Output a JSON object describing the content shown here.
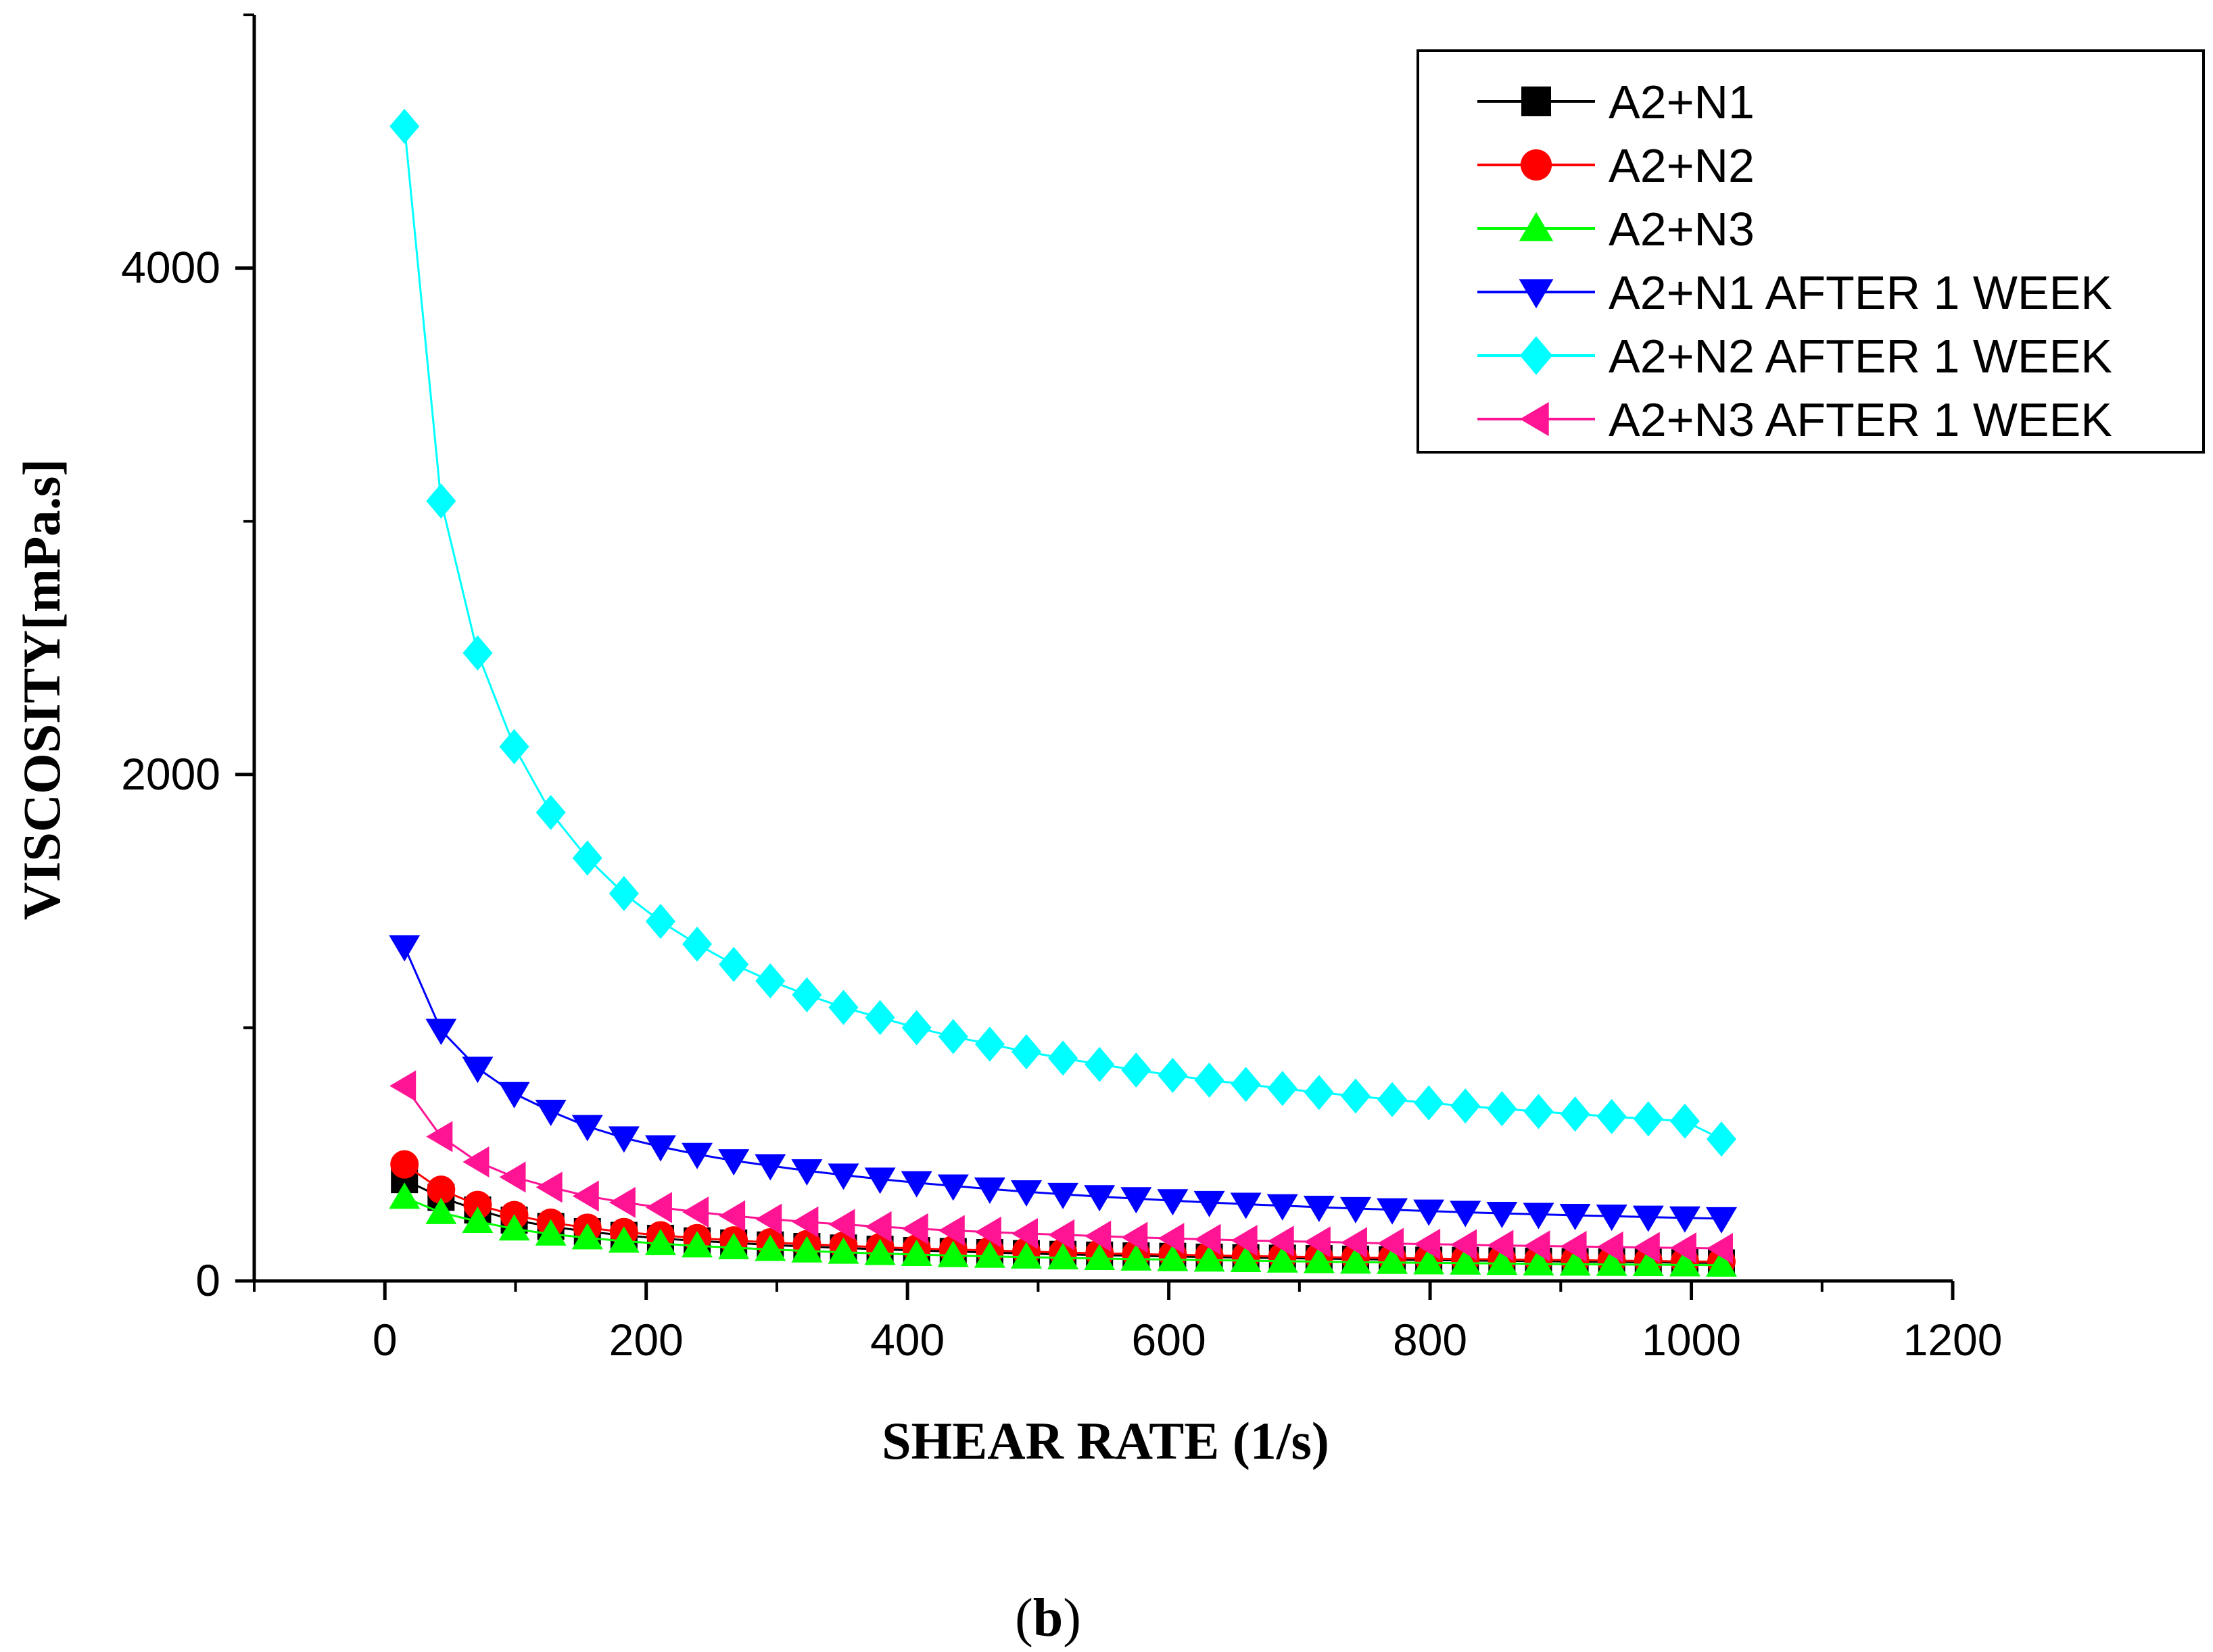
{
  "chart_data": {
    "type": "line",
    "title": "",
    "xlabel": "SHEAR RATE (1/s)",
    "ylabel": "VISCOSITY[mPa.s]",
    "xlim": [
      -100,
      1200
    ],
    "ylim": [
      0,
      5000
    ],
    "xticks": [
      0,
      200,
      400,
      600,
      800,
      1000,
      1200
    ],
    "xtick_labels": [
      "0",
      "200",
      "400",
      "600",
      "800",
      "1000",
      "1200"
    ],
    "yticks": [
      0,
      2000,
      4000
    ],
    "ytick_labels": [
      "0",
      "2000",
      "4000"
    ],
    "legend_position": "top-right",
    "panel_label_open": "(",
    "panel_label_letter": "b",
    "panel_label_close": ")",
    "x": [
      15,
      43,
      71,
      99,
      127,
      155,
      183,
      211,
      239,
      267,
      295,
      323,
      351,
      379,
      407,
      435,
      463,
      491,
      519,
      547,
      575,
      603,
      631,
      659,
      687,
      715,
      743,
      771,
      799,
      827,
      855,
      883,
      911,
      939,
      967,
      995,
      1023
    ],
    "series": [
      {
        "name": "A2+N1",
        "color": "#000000",
        "marker": "square",
        "values": [
          400,
          330,
          280,
          240,
          215,
          195,
          180,
          168,
          158,
          150,
          142,
          136,
          130,
          125,
          120,
          116,
          112,
          108,
          105,
          102,
          99,
          97,
          94,
          92,
          90,
          88,
          86,
          84,
          82,
          81,
          79,
          78,
          76,
          75,
          74,
          72,
          71
        ]
      },
      {
        "name": "A2+N2",
        "color": "#ff0000",
        "marker": "circle",
        "values": [
          460,
          360,
          300,
          260,
          230,
          210,
          193,
          180,
          169,
          160,
          152,
          145,
          139,
          133,
          128,
          124,
          120,
          116,
          112,
          109,
          106,
          103,
          101,
          98,
          96,
          94,
          92,
          90,
          88,
          86,
          85,
          83,
          82,
          80,
          79,
          77,
          76
        ]
      },
      {
        "name": "A2+N3",
        "color": "#00ff00",
        "marker": "triangle-up",
        "values": [
          330,
          270,
          235,
          205,
          185,
          170,
          157,
          147,
          138,
          131,
          124,
          118,
          113,
          108,
          104,
          100,
          97,
          94,
          91,
          88,
          86,
          84,
          82,
          80,
          78,
          76,
          74,
          73,
          71,
          70,
          69,
          67,
          66,
          65,
          64,
          63,
          62
        ]
      },
      {
        "name": "A2+N1 AFTER 1 WEEK",
        "color": "#0000ff",
        "marker": "triangle-down",
        "values": [
          1320,
          990,
          840,
          740,
          670,
          610,
          565,
          530,
          500,
          475,
          455,
          435,
          418,
          402,
          388,
          375,
          363,
          352,
          342,
          333,
          325,
          317,
          310,
          303,
          297,
          291,
          286,
          281,
          276,
          271,
          267,
          263,
          259,
          256,
          252,
          249,
          246
        ]
      },
      {
        "name": "A2+N2 AFTER 1 WEEK",
        "color": "#00ffff",
        "marker": "diamond",
        "values": [
          4560,
          3080,
          2480,
          2110,
          1850,
          1670,
          1530,
          1420,
          1330,
          1250,
          1185,
          1130,
          1080,
          1040,
          1000,
          965,
          935,
          905,
          880,
          855,
          833,
          812,
          793,
          776,
          760,
          744,
          730,
          716,
          703,
          691,
          680,
          669,
          659,
          649,
          640,
          631,
          560
        ]
      },
      {
        "name": "A2+N3 AFTER 1 WEEK",
        "color": "#ff1493",
        "marker": "triangle-left",
        "values": [
          770,
          570,
          470,
          410,
          370,
          335,
          310,
          290,
          272,
          257,
          244,
          233,
          223,
          214,
          206,
          199,
          193,
          187,
          182,
          177,
          172,
          168,
          164,
          160,
          157,
          154,
          151,
          148,
          145,
          143,
          140,
          138,
          136,
          134,
          132,
          130,
          128
        ]
      }
    ]
  }
}
